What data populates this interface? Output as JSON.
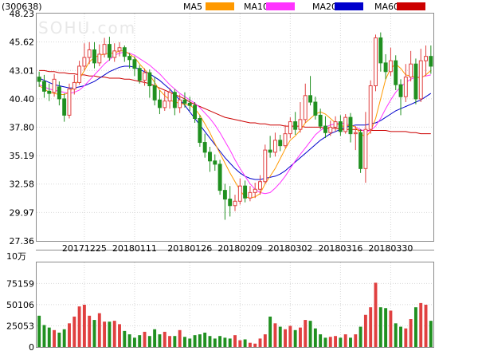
{
  "chart_data": [
    {
      "type": "candlestick",
      "ticker": "(300638)",
      "watermark": "SOHU.com",
      "legend": [
        {
          "name": "MA5",
          "color": "#ff9900"
        },
        {
          "name": "MA10",
          "color": "#ff33ff"
        },
        {
          "name": "MA20",
          "color": "#0000cc"
        },
        {
          "name": "MA60",
          "color": "#cc0000"
        }
      ],
      "y_ticks": [
        "48.23",
        "45.62",
        "43.01",
        "40.40",
        "37.80",
        "35.19",
        "32.58",
        "29.97",
        "27.36"
      ],
      "ylim": [
        27.36,
        48.23
      ],
      "x_ticks": [
        {
          "label": "20171225",
          "index": 9
        },
        {
          "label": "20180111",
          "index": 19
        },
        {
          "label": "20180126",
          "index": 30
        },
        {
          "label": "20180209",
          "index": 40
        },
        {
          "label": "20180302",
          "index": 50
        },
        {
          "label": "20180316",
          "index": 60
        },
        {
          "label": "20180330",
          "index": 70
        }
      ],
      "up_color": "#e04040",
      "down_color": "#209020",
      "candles": [
        [
          42.4,
          42.0,
          42.9,
          41.5
        ],
        [
          42.0,
          41.1,
          42.6,
          40.5
        ],
        [
          41.1,
          40.9,
          41.8,
          40.2
        ],
        [
          41.0,
          42.2,
          42.7,
          40.6
        ],
        [
          41.5,
          40.4,
          42.0,
          39.8
        ],
        [
          40.4,
          38.9,
          40.9,
          38.3
        ],
        [
          38.9,
          41.3,
          41.8,
          38.6
        ],
        [
          41.3,
          41.9,
          42.6,
          40.8
        ],
        [
          41.9,
          43.4,
          43.9,
          41.7
        ],
        [
          43.4,
          44.2,
          45.5,
          43.0
        ],
        [
          44.2,
          44.9,
          45.6,
          43.6
        ],
        [
          44.9,
          43.7,
          45.6,
          43.2
        ],
        [
          43.7,
          44.5,
          45.4,
          43.4
        ],
        [
          44.5,
          45.4,
          46.0,
          44.2
        ],
        [
          45.4,
          44.2,
          46.1,
          43.9
        ],
        [
          44.2,
          44.8,
          45.5,
          43.8
        ],
        [
          44.8,
          45.1,
          45.6,
          44.3
        ],
        [
          45.1,
          44.3,
          45.3,
          43.8
        ],
        [
          44.3,
          44.0,
          44.6,
          43.2
        ],
        [
          44.0,
          43.2,
          44.3,
          42.5
        ],
        [
          43.2,
          42.1,
          43.5,
          41.8
        ],
        [
          42.1,
          42.8,
          43.2,
          41.6
        ],
        [
          42.8,
          41.6,
          43.1,
          40.5
        ],
        [
          41.6,
          40.3,
          42.4,
          39.8
        ],
        [
          40.3,
          39.6,
          41.2,
          39.0
        ],
        [
          39.6,
          40.2,
          41.1,
          39.3
        ],
        [
          40.2,
          41.0,
          41.4,
          39.5
        ],
        [
          41.0,
          39.6,
          41.3,
          38.9
        ],
        [
          39.6,
          40.3,
          40.8,
          39.1
        ],
        [
          40.3,
          40.0,
          41.0,
          39.6
        ],
        [
          40.0,
          39.8,
          40.6,
          39.3
        ],
        [
          39.8,
          38.6,
          40.1,
          38.2
        ],
        [
          38.6,
          36.4,
          38.9,
          36.0
        ],
        [
          36.4,
          35.5,
          37.2,
          35.0
        ],
        [
          35.5,
          34.7,
          36.0,
          33.7
        ],
        [
          34.7,
          34.4,
          35.3,
          33.8
        ],
        [
          34.4,
          32.0,
          34.8,
          31.6
        ],
        [
          32.0,
          31.2,
          32.6,
          29.3
        ],
        [
          31.2,
          30.6,
          32.4,
          29.6
        ],
        [
          30.6,
          31.0,
          31.6,
          30.1
        ],
        [
          31.0,
          32.4,
          33.1,
          30.7
        ],
        [
          32.4,
          31.3,
          32.9,
          30.9
        ],
        [
          31.3,
          31.8,
          32.4,
          31.0
        ],
        [
          31.8,
          32.1,
          32.7,
          31.3
        ],
        [
          32.1,
          32.8,
          33.4,
          31.6
        ],
        [
          32.8,
          35.7,
          36.2,
          32.6
        ],
        [
          35.7,
          35.5,
          37.0,
          35.0
        ],
        [
          35.5,
          36.6,
          37.3,
          35.1
        ],
        [
          36.6,
          36.1,
          37.1,
          35.6
        ],
        [
          36.1,
          37.2,
          38.0,
          35.9
        ],
        [
          37.2,
          38.3,
          38.7,
          36.8
        ],
        [
          38.3,
          37.6,
          39.2,
          37.1
        ],
        [
          37.6,
          38.5,
          40.1,
          37.3
        ],
        [
          38.5,
          40.7,
          41.8,
          38.2
        ],
        [
          40.7,
          40.1,
          42.5,
          39.8
        ],
        [
          40.1,
          38.9,
          40.6,
          38.5
        ],
        [
          38.9,
          37.9,
          39.5,
          37.6
        ],
        [
          37.9,
          37.3,
          38.8,
          36.8
        ],
        [
          37.3,
          37.8,
          38.4,
          37.0
        ],
        [
          37.8,
          38.3,
          38.8,
          37.4
        ],
        [
          38.3,
          37.4,
          38.9,
          37.0
        ],
        [
          37.4,
          38.7,
          39.0,
          37.2
        ],
        [
          38.7,
          37.2,
          39.1,
          36.4
        ],
        [
          37.2,
          37.3,
          37.9,
          35.7
        ],
        [
          37.3,
          34.0,
          37.6,
          33.6
        ],
        [
          34.0,
          37.6,
          39.2,
          32.7
        ],
        [
          37.6,
          41.6,
          42.1,
          37.2
        ],
        [
          41.6,
          46.0,
          46.3,
          41.1
        ],
        [
          46.0,
          43.7,
          46.5,
          42.9
        ],
        [
          43.7,
          42.9,
          44.5,
          42.2
        ],
        [
          42.9,
          43.9,
          45.1,
          42.5
        ],
        [
          43.9,
          41.7,
          44.4,
          41.2
        ],
        [
          41.7,
          40.6,
          42.2,
          38.9
        ],
        [
          40.6,
          42.4,
          43.6,
          40.1
        ],
        [
          42.4,
          43.6,
          44.8,
          42.0
        ],
        [
          43.6,
          40.4,
          44.1,
          39.9
        ],
        [
          40.4,
          43.9,
          45.0,
          40.1
        ],
        [
          43.9,
          44.3,
          45.3,
          42.5
        ],
        [
          44.3,
          43.4,
          45.3,
          42.7
        ]
      ],
      "ma5": [
        41.6,
        41.3,
        41.0,
        40.9,
        40.8,
        40.8,
        41.0,
        41.6,
        42.2,
        43.0,
        43.8,
        44.2,
        44.4,
        44.5,
        44.6,
        44.6,
        44.8,
        44.8,
        44.5,
        44.2,
        43.6,
        43.1,
        42.6,
        41.9,
        41.2,
        40.7,
        40.3,
        40.1,
        40.0,
        39.9,
        39.8,
        39.5,
        38.9,
        38.1,
        37.3,
        36.3,
        35.4,
        34.5,
        33.6,
        32.8,
        32.0,
        31.4,
        31.3,
        31.4,
        31.7,
        32.6,
        33.3,
        34.0,
        34.9,
        35.8,
        36.6,
        37.0,
        37.5,
        38.2,
        38.6,
        39.0,
        39.2,
        39.0,
        38.6,
        38.2,
        37.9,
        37.9,
        38.0,
        37.8,
        37.2,
        36.9,
        37.4,
        38.6,
        40.4,
        42.2,
        43.2,
        43.6,
        43.2,
        42.6,
        42.5,
        42.4,
        42.3,
        42.6,
        43.0
      ],
      "ma10": [
        41.7,
        41.5,
        41.3,
        41.2,
        41.1,
        41.0,
        40.9,
        41.0,
        41.2,
        41.6,
        42.1,
        42.6,
        43.1,
        43.6,
        44.0,
        44.4,
        44.6,
        44.7,
        44.6,
        44.4,
        44.1,
        43.8,
        43.5,
        43.1,
        42.7,
        42.2,
        41.7,
        41.3,
        40.9,
        40.6,
        40.3,
        40.0,
        39.6,
        39.1,
        38.6,
        38.0,
        37.3,
        36.5,
        35.7,
        34.8,
        34.0,
        33.3,
        32.6,
        32.1,
        31.8,
        31.7,
        31.8,
        32.2,
        32.7,
        33.3,
        34.0,
        34.7,
        35.3,
        35.9,
        36.5,
        37.1,
        37.5,
        37.8,
        38.0,
        38.1,
        38.2,
        38.1,
        38.0,
        37.8,
        37.6,
        37.4,
        37.5,
        37.9,
        38.6,
        39.5,
        40.3,
        41.0,
        41.5,
        41.9,
        42.2,
        42.4,
        42.4,
        42.5,
        42.6
      ],
      "ma20": [
        42.3,
        42.1,
        41.9,
        41.7,
        41.6,
        41.5,
        41.4,
        41.4,
        41.5,
        41.6,
        41.8,
        42.0,
        42.3,
        42.6,
        42.9,
        43.1,
        43.3,
        43.4,
        43.4,
        43.3,
        43.1,
        42.9,
        42.7,
        42.4,
        42.1,
        41.7,
        41.3,
        40.8,
        40.3,
        39.8,
        39.2,
        38.6,
        38.0,
        37.4,
        36.8,
        36.2,
        35.6,
        35.0,
        34.5,
        34.0,
        33.6,
        33.3,
        33.1,
        33.0,
        33.0,
        33.1,
        33.2,
        33.3,
        33.5,
        33.8,
        34.2,
        34.6,
        35.0,
        35.4,
        35.8,
        36.2,
        36.6,
        36.9,
        37.2,
        37.4,
        37.6,
        37.8,
        37.9,
        38.0,
        38.0,
        38.0,
        38.1,
        38.2,
        38.4,
        38.7,
        39.0,
        39.3,
        39.5,
        39.7,
        39.9,
        40.1,
        40.3,
        40.6,
        40.9
      ],
      "ma60": [
        43.0,
        43.0,
        42.9,
        42.9,
        42.8,
        42.8,
        42.7,
        42.7,
        42.6,
        42.6,
        42.5,
        42.5,
        42.4,
        42.4,
        42.3,
        42.3,
        42.3,
        42.2,
        42.2,
        42.1,
        42.0,
        41.9,
        41.8,
        41.6,
        41.4,
        41.2,
        41.0,
        40.8,
        40.6,
        40.4,
        40.1,
        39.9,
        39.7,
        39.5,
        39.3,
        39.1,
        38.9,
        38.7,
        38.6,
        38.5,
        38.4,
        38.3,
        38.2,
        38.2,
        38.1,
        38.1,
        38.0,
        38.0,
        38.0,
        37.9,
        37.9,
        37.9,
        37.9,
        37.8,
        37.8,
        37.8,
        37.8,
        37.7,
        37.7,
        37.7,
        37.6,
        37.6,
        37.6,
        37.6,
        37.5,
        37.5,
        37.5,
        37.5,
        37.5,
        37.5,
        37.4,
        37.4,
        37.4,
        37.4,
        37.3,
        37.3,
        37.2,
        37.2,
        37.2
      ]
    },
    {
      "type": "bar",
      "unit_label": "10万",
      "y_ticks": [
        "75159",
        "50106",
        "25053",
        "0"
      ],
      "ylim": [
        0,
        100000
      ],
      "volumes": [
        37000,
        26000,
        23000,
        20000,
        17000,
        21000,
        28000,
        36000,
        48000,
        50000,
        37000,
        32000,
        40000,
        30000,
        30000,
        31000,
        27000,
        19000,
        15000,
        11000,
        14000,
        18000,
        13000,
        21000,
        15000,
        18000,
        13000,
        13000,
        20000,
        12000,
        10000,
        14000,
        15000,
        17000,
        13000,
        10000,
        13000,
        11000,
        10000,
        14000,
        8000,
        9000,
        5000,
        4000,
        10000,
        15000,
        36000,
        28000,
        24000,
        21000,
        25000,
        20000,
        23000,
        32000,
        31000,
        22000,
        15000,
        11000,
        12000,
        13000,
        11000,
        15000,
        11000,
        15000,
        24000,
        38000,
        47000,
        76000,
        47000,
        46000,
        43000,
        28000,
        24000,
        22000,
        33000,
        47000,
        52000,
        50000,
        31000
      ]
    }
  ]
}
